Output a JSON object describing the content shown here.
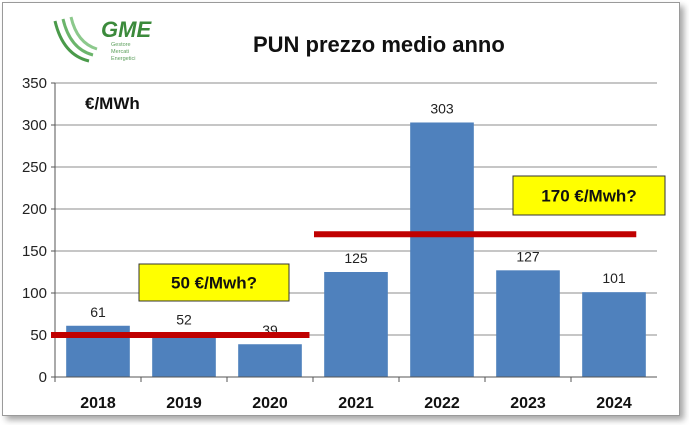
{
  "logo": {
    "name": "GME",
    "subtitle": [
      "Gestore",
      "Mercati",
      "Energetici"
    ]
  },
  "chart_data": {
    "type": "bar",
    "title": "PUN prezzo medio anno",
    "unit_label": "€/MWh",
    "categories": [
      "2018",
      "2019",
      "2020",
      "2021",
      "2022",
      "2023",
      "2024"
    ],
    "values": [
      61,
      52,
      39,
      125,
      303,
      127,
      101
    ],
    "data_labels": [
      "61",
      "52",
      "39",
      "125",
      "303",
      "127",
      "101"
    ],
    "ylim": [
      0,
      350
    ],
    "yticks": [
      0,
      50,
      100,
      150,
      200,
      250,
      300,
      350
    ],
    "grid": true,
    "bar_color": "#4f81bd",
    "annotations": [
      {
        "text": "50 €/Mwh?",
        "level": 50,
        "from": "2018",
        "to": "2020"
      },
      {
        "text": "170 €/Mwh?",
        "level": 170,
        "from": "2021",
        "to": "2024"
      }
    ],
    "reference_line_color": "#c00000",
    "callout_color": "#ffff00"
  }
}
